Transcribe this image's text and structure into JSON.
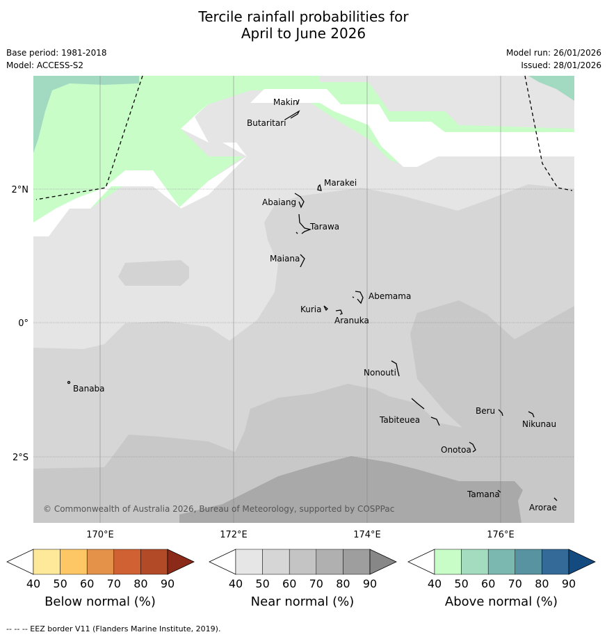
{
  "title_line1": "Tercile rainfall probabilities for",
  "title_line2": "April to June 2026",
  "base_period": "Base period: 1981-2018",
  "model": "Model: ACCESS-S2",
  "model_run": "Model run: 26/01/2026",
  "issued": "Issued: 28/01/2026",
  "copyright": "© Commonwealth of Australia 2026, Bureau of Meteorology, supported by COSPPac",
  "lat_labels": [
    "2°N",
    "0°",
    "2°S"
  ],
  "lon_labels": [
    "170°E",
    "172°E",
    "174°E",
    "176°E"
  ],
  "places": {
    "makin": "Makin",
    "butaritari": "Butaritari",
    "marakei": "Marakei",
    "abaiang": "Abaiang",
    "tarawa": "Tarawa",
    "maiana": "Maiana",
    "abemama": "Abemama",
    "kuria": "Kuria",
    "aranuka": "Aranuka",
    "banaba": "Banaba",
    "nonouti": "Nonouti",
    "tabiteuea": "Tabiteuea",
    "beru": "Beru",
    "nikunau": "Nikunau",
    "onotoa": "Onotoa",
    "tamana": "Tamana",
    "arorae": "Arorae"
  },
  "colorbars": [
    {
      "label": "Below normal (%)",
      "ticks": [
        "40",
        "50",
        "60",
        "70",
        "80",
        "90"
      ],
      "colors": [
        "#ffffff",
        "#fee99a",
        "#fdc766",
        "#e4924a",
        "#cf6133",
        "#b34a27",
        "#8b2a18"
      ]
    },
    {
      "label": "Near normal (%)",
      "ticks": [
        "40",
        "50",
        "60",
        "70",
        "80",
        "90"
      ],
      "colors": [
        "#ffffff",
        "#e6e6e6",
        "#d6d6d6",
        "#c4c4c4",
        "#b0b0b0",
        "#9e9e9e",
        "#878787"
      ]
    },
    {
      "label": "Above normal (%)",
      "ticks": [
        "40",
        "50",
        "60",
        "70",
        "80",
        "90"
      ],
      "colors": [
        "#ffffff",
        "#c8fdc8",
        "#a4dcc0",
        "#7ab8b0",
        "#5893a2",
        "#336a98",
        "#134b80"
      ]
    }
  ],
  "footer": "--  --  -- EEZ border V11 (Flanders Marine Institute, 2019)."
}
